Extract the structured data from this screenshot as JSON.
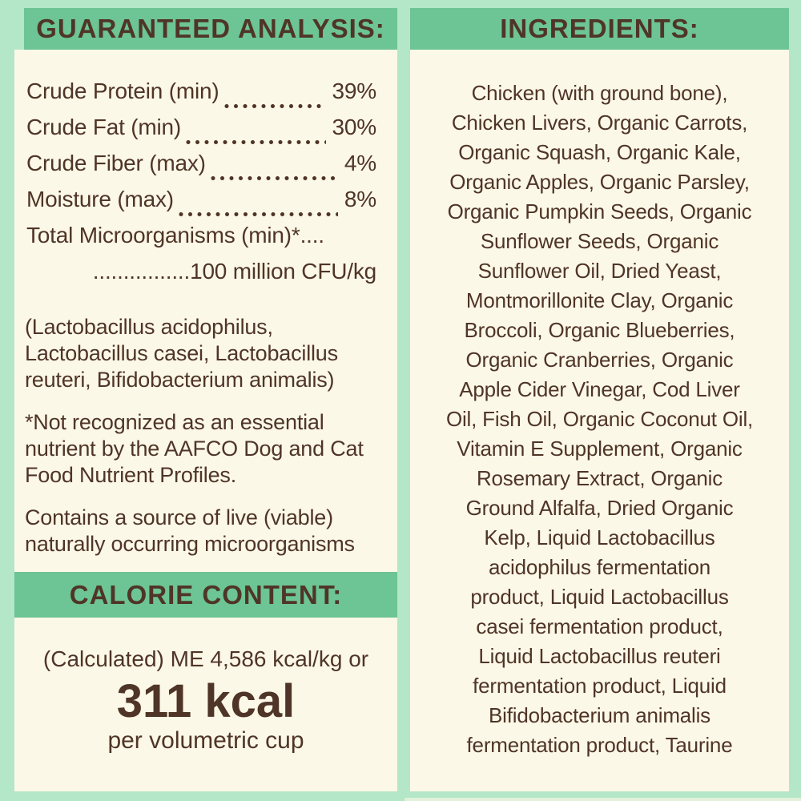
{
  "theme": {
    "background": "#b4e6c8",
    "band": "#6dc494",
    "panel": "#fcf8e8",
    "text": "#4f3527"
  },
  "left_panel": {
    "header": "GUARANTEED ANALYSIS:",
    "rows": [
      {
        "label": "Crude Protein (min)",
        "value": "39%"
      },
      {
        "label": "Crude Fat (min)",
        "value": "30%"
      },
      {
        "label": "Crude Fiber (max)",
        "value": "4%"
      },
      {
        "label": "Moisture (max)",
        "value": "8%"
      }
    ],
    "row_total_label": "Total Microorganisms (min)*....",
    "row_total_value": "................100 million CFU/kg",
    "organisms_lines": [
      "(Lactobacillus acidophilus,",
      "Lactobacillus casei, Lactobacillus",
      "reuteri, Bifidobacterium animalis)"
    ],
    "footnote_lines": [
      "*Not recognized as an essential",
      "nutrient by the AAFCO Dog and Cat",
      "Food Nutrient Profiles."
    ],
    "live_note_lines": [
      "Contains a source of live (viable)",
      "naturally occurring microorganisms"
    ],
    "calorie": {
      "header": "CALORIE CONTENT:",
      "line1": "(Calculated) ME 4,586 kcal/kg or",
      "value": "311 kcal",
      "unit": "per volumetric cup"
    }
  },
  "right_panel": {
    "header": "INGREDIENTS:",
    "lines": [
      "Chicken (with ground bone),",
      "Chicken Livers, Organic Carrots,",
      "Organic Squash, Organic Kale,",
      "Organic Apples, Organic Parsley,",
      "Organic Pumpkin Seeds, Organic",
      "Sunflower Seeds, Organic",
      "Sunflower Oil, Dried Yeast,",
      "Montmorillonite Clay, Organic",
      "Broccoli, Organic Blueberries,",
      "Organic Cranberries, Organic",
      "Apple Cider Vinegar, Cod Liver",
      "Oil, Fish Oil, Organic Coconut Oil,",
      "Vitamin E Supplement, Organic",
      "Rosemary Extract, Organic",
      "Ground Alfalfa, Dried Organic",
      "Kelp, Liquid Lactobacillus",
      "acidophilus fermentation",
      "product, Liquid Lactobacillus",
      "casei fermentation product,",
      "Liquid Lactobacillus reuteri",
      "fermentation product, Liquid",
      "Bifidobacterium animalis",
      "fermentation product, Taurine"
    ]
  }
}
